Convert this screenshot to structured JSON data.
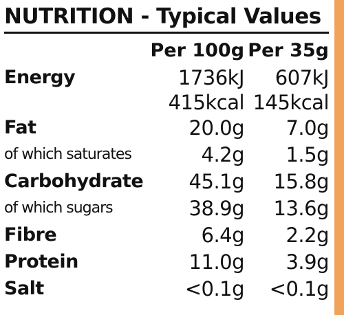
{
  "title": "NUTRITION - Typical Values",
  "columns": {
    "per_100g": "Per 100g",
    "per_serving": "Per 35g"
  },
  "rows": [
    {
      "label": "Energy",
      "per_100g": "1736kJ",
      "per_serving": "607kJ"
    },
    {
      "label": "",
      "per_100g": "415kcal",
      "per_serving": "145kcal"
    },
    {
      "label": "Fat",
      "per_100g": "20.0g",
      "per_serving": "7.0g"
    },
    {
      "label": "of which saturates",
      "per_100g": "4.2g",
      "per_serving": "1.5g"
    },
    {
      "label": "Carbohydrate",
      "per_100g": "45.1g",
      "per_serving": "15.8g"
    },
    {
      "label": "of which sugars",
      "per_100g": "38.9g",
      "per_serving": "13.6g"
    },
    {
      "label": "Fibre",
      "per_100g": "6.4g",
      "per_serving": "2.2g"
    },
    {
      "label": "Protein",
      "per_100g": "11.0g",
      "per_serving": "3.9g"
    },
    {
      "label": "Salt",
      "per_100g": "<0.1g",
      "per_serving": "<0.1g"
    }
  ],
  "colors": {
    "text": "#111111",
    "edge_accent": "#f1a35c"
  }
}
